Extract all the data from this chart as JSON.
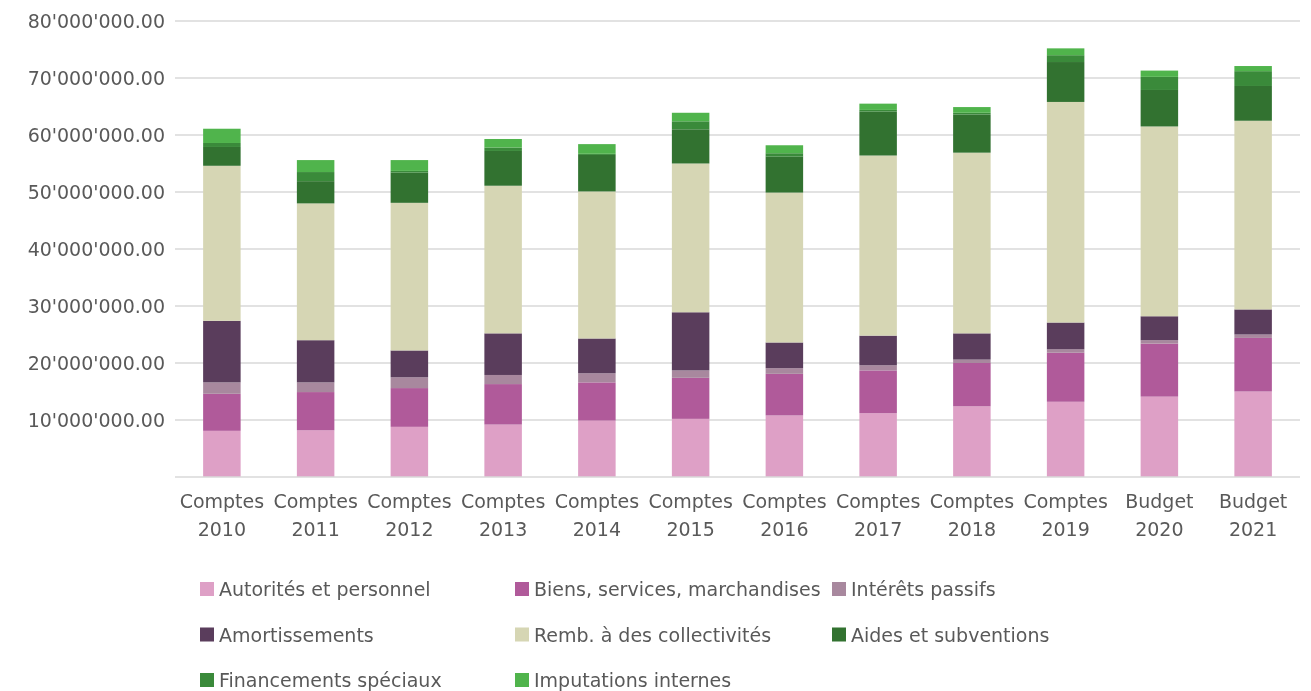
{
  "chart_data": {
    "type": "bar",
    "stacked": true,
    "categories": [
      "Comptes 2010",
      "Comptes 2011",
      "Comptes 2012",
      "Comptes 2013",
      "Comptes 2014",
      "Comptes 2015",
      "Comptes 2016",
      "Comptes 2017",
      "Comptes 2018",
      "Comptes 2019",
      "Budget 2020",
      "Budget 2021"
    ],
    "series": [
      {
        "name": "Autorités et personnel",
        "color": "#dea0c6",
        "values": [
          8100000,
          8200000,
          8800000,
          9200000,
          9900000,
          10200000,
          10800000,
          11200000,
          12400000,
          13200000,
          14100000,
          15000000
        ]
      },
      {
        "name": "Biens, services, marchandises",
        "color": "#b05a9a",
        "values": [
          6500000,
          6700000,
          6800000,
          7100000,
          6700000,
          7200000,
          7300000,
          7500000,
          7600000,
          8600000,
          9300000,
          9400000
        ]
      },
      {
        "name": "Intérêts passifs",
        "color": "#a8889e",
        "values": [
          2000000,
          1700000,
          1900000,
          1600000,
          1600000,
          1300000,
          1000000,
          900000,
          600000,
          600000,
          600000,
          600000
        ]
      },
      {
        "name": "Amortissements",
        "color": "#5a3d5c",
        "values": [
          10800000,
          7400000,
          4700000,
          7300000,
          6100000,
          10200000,
          4500000,
          5200000,
          4600000,
          4700000,
          4200000,
          4400000
        ]
      },
      {
        "name": "Remb. à des collectivités",
        "color": "#d6d6b4",
        "values": [
          27200000,
          24000000,
          25900000,
          25900000,
          25800000,
          26100000,
          26300000,
          31600000,
          31700000,
          38700000,
          33300000,
          33100000
        ]
      },
      {
        "name": "Aides et subventions",
        "color": "#327230",
        "values": [
          3300000,
          3900000,
          5300000,
          6100000,
          6400000,
          6000000,
          6300000,
          7700000,
          6700000,
          7000000,
          6400000,
          6100000
        ]
      },
      {
        "name": "Financements spéciaux",
        "color": "#3a8a3a",
        "values": [
          700000,
          1600000,
          300000,
          600000,
          200000,
          1400000,
          600000,
          300000,
          300000,
          1200000,
          2300000,
          2600000
        ]
      },
      {
        "name": "Imputations internes",
        "color": "#50b44c",
        "values": [
          2500000,
          2100000,
          1900000,
          1500000,
          1700000,
          1500000,
          1400000,
          1100000,
          1000000,
          1200000,
          1100000,
          900000
        ]
      }
    ],
    "ylim": [
      0,
      80000000
    ],
    "yticks": [
      {
        "value": 10000000,
        "label": "10'000'000.00"
      },
      {
        "value": 20000000,
        "label": "20'000'000.00"
      },
      {
        "value": 30000000,
        "label": "30'000'000.00"
      },
      {
        "value": 40000000,
        "label": "40'000'000.00"
      },
      {
        "value": 50000000,
        "label": "50'000'000.00"
      },
      {
        "value": 60000000,
        "label": "60'000'000.00"
      },
      {
        "value": 70000000,
        "label": "70'000'000.00"
      },
      {
        "value": 80000000,
        "label": "80'000'000.00"
      }
    ],
    "grid": "y",
    "legend": "bottom"
  }
}
